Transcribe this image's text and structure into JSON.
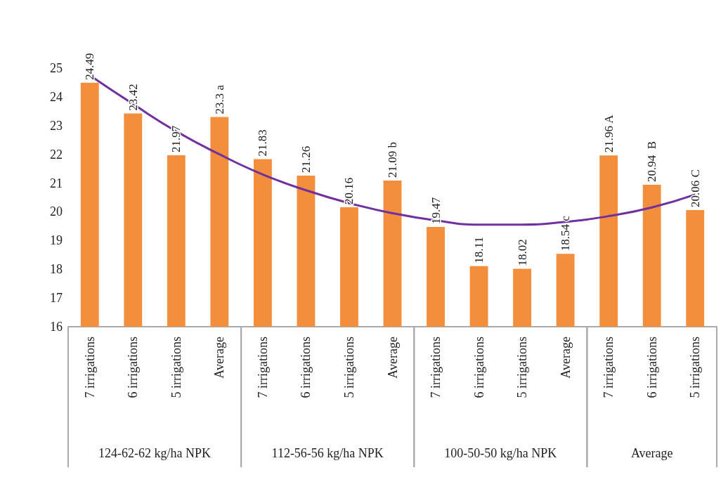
{
  "chart_data": {
    "type": "bar",
    "categories": [
      "7 irrigations",
      "6 irrigations",
      "5 irrigations",
      "Average",
      "7 irrigations",
      "6 irrigations",
      "5 irrigations",
      "Average",
      "7 irrigations",
      "6 irrigations",
      "5 irrigations",
      "Average",
      "7 irrigations",
      "6 irrigations",
      "5 irrigations"
    ],
    "series": [
      {
        "color": "#f28e3c",
        "values": [
          24.49,
          23.42,
          21.97,
          23.3,
          null,
          null,
          null,
          null,
          null,
          null,
          null,
          null,
          null,
          null,
          null
        ],
        "value_labels": [
          "24.49",
          "23.42",
          "21.97",
          "23.3 a",
          null,
          null,
          null,
          null,
          null,
          null,
          null,
          null,
          null,
          null,
          null
        ]
      },
      {
        "color": "#f28e3c",
        "values": [
          null,
          null,
          null,
          null,
          21.83,
          21.26,
          20.16,
          21.09,
          null,
          null,
          null,
          null,
          null,
          null,
          null
        ],
        "value_labels": [
          null,
          null,
          null,
          null,
          "21.83",
          "21.26",
          "20.16",
          "21.09 b",
          null,
          null,
          null,
          null,
          null,
          null,
          null
        ]
      },
      {
        "color": "#f28e3c",
        "values": [
          null,
          null,
          null,
          null,
          null,
          null,
          null,
          null,
          19.47,
          18.11,
          18.02,
          18.54,
          null,
          null,
          null
        ],
        "value_labels": [
          null,
          null,
          null,
          null,
          null,
          null,
          null,
          null,
          "19.47",
          "18.11",
          "18.02",
          "18.54 c",
          null,
          null,
          null
        ]
      },
      {
        "color": "#f28e3c",
        "values": [
          null,
          null,
          null,
          null,
          null,
          null,
          null,
          null,
          null,
          null,
          null,
          null,
          21.96,
          20.94,
          20.06
        ],
        "value_labels": [
          null,
          null,
          null,
          null,
          null,
          null,
          null,
          null,
          null,
          null,
          null,
          null,
          "21.96 A",
          "20.94  B",
          "20.06 C"
        ]
      },
      {
        "type": "line",
        "color": "#7030a0",
        "values": [
          24.75,
          23.75,
          22.8,
          22.0,
          21.3,
          20.75,
          20.3,
          19.95,
          19.7,
          19.55,
          19.55,
          19.65,
          19.85,
          20.15,
          20.6
        ]
      }
    ],
    "annotations": [
      "124-62-62 kg/ha NPK",
      "112-56-56 kg/ha NPK",
      "100-50-50 kg/ha NPK",
      "Average"
    ],
    "ylim": [
      16,
      25
    ],
    "yticks": [
      16,
      17,
      18,
      19,
      20,
      21,
      22,
      23,
      24,
      25
    ],
    "grid": false,
    "marker": "none"
  }
}
